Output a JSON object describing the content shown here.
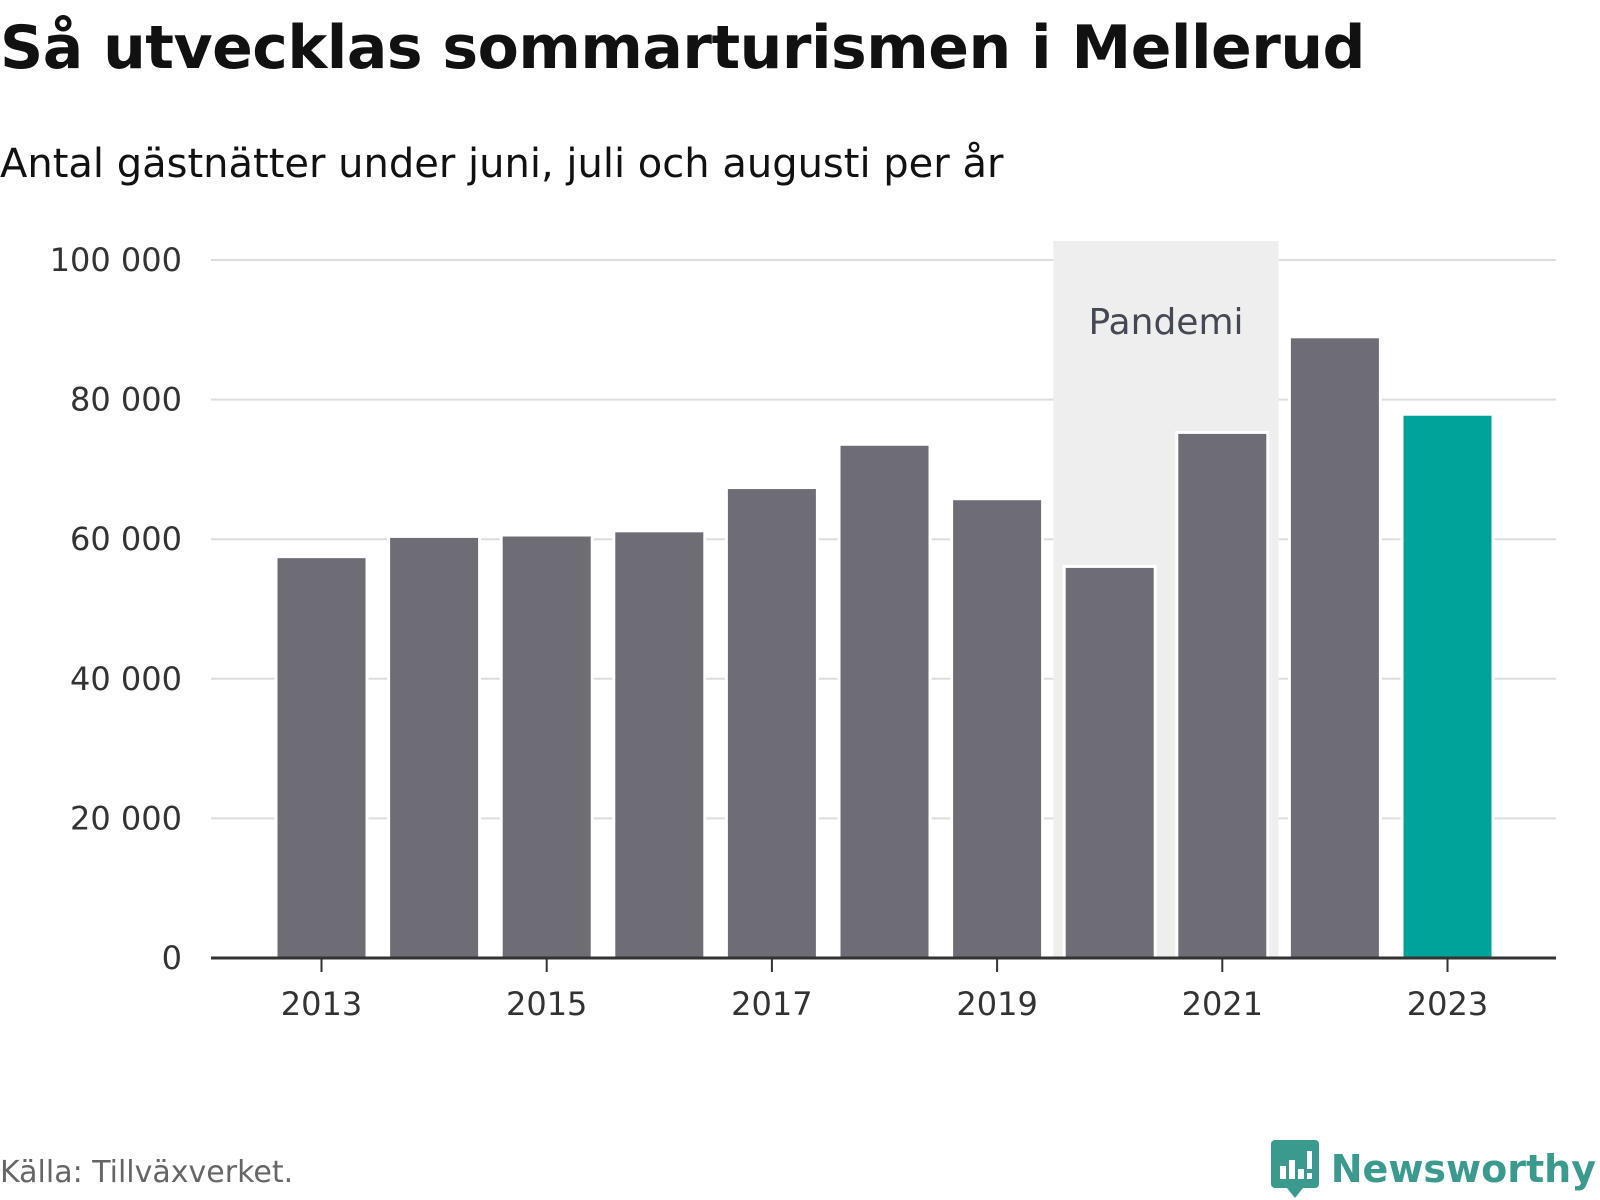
{
  "chart_data": {
    "type": "bar",
    "title": "Så utvecklas sommarturismen i Mellerud",
    "subtitle": "Antal gästnätter under juni, juli och augusti per år",
    "x": [
      2013,
      2014,
      2015,
      2016,
      2017,
      2018,
      2019,
      2020,
      2021,
      2022,
      2023
    ],
    "values": [
      57500,
      60400,
      60600,
      61200,
      67400,
      73600,
      65800,
      56100,
      75300,
      89000,
      77900
    ],
    "x_tick_labels": [
      "2013",
      "2015",
      "2017",
      "2019",
      "2021",
      "2023"
    ],
    "y_tick_labels": [
      "0",
      "20 000",
      "40 000",
      "60 000",
      "80 000",
      "100 000"
    ],
    "y_ticks": [
      0,
      20000,
      40000,
      60000,
      80000,
      100000
    ],
    "ylim": [
      0,
      100000
    ],
    "grid": true,
    "highlight": {
      "x": 2023,
      "color": "#00a39a"
    },
    "bar_color": "#6e6d76",
    "annotation": {
      "label": "Pandemi",
      "x_range": [
        2020,
        2021
      ],
      "color": "#eeeeee"
    },
    "source": "Källa: Tillväxverket."
  },
  "brand": {
    "name": "Newsworthy",
    "icon": "newsworthy-logo-icon",
    "color": "#3a9a8e"
  }
}
